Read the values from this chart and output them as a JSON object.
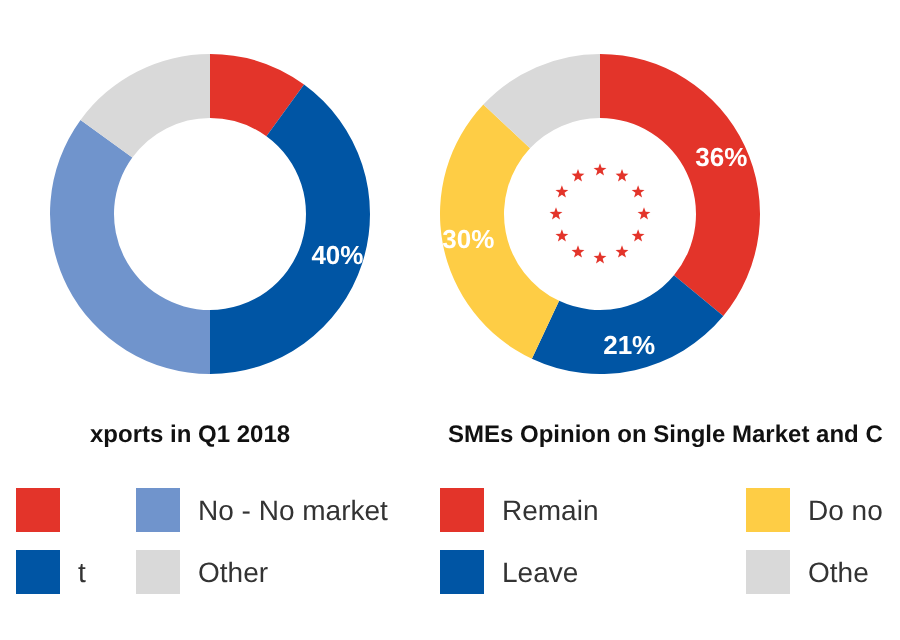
{
  "chart_data": [
    {
      "type": "donut",
      "title": "xports in Q1 2018",
      "categories": [
        null,
        "t",
        "No - No market",
        "Other"
      ],
      "values": [
        10,
        40,
        35,
        15
      ],
      "colors": [
        "#e3342a",
        "#0055a4",
        "#7094cc",
        "#d9d9d9"
      ],
      "value_labels": [
        null,
        "40%",
        null,
        null
      ],
      "legend": "bottom"
    },
    {
      "type": "donut",
      "title": "SMEs Opinion on Single Market and C",
      "categories": [
        "Remain",
        "Leave",
        "Do no",
        "Othe"
      ],
      "values": [
        36,
        21,
        30,
        13
      ],
      "colors": [
        "#e3342a",
        "#0055a4",
        "#fecd45",
        "#d9d9d9"
      ],
      "value_labels": [
        "36%",
        "21%",
        "30%",
        null
      ],
      "legend": "bottom"
    }
  ]
}
